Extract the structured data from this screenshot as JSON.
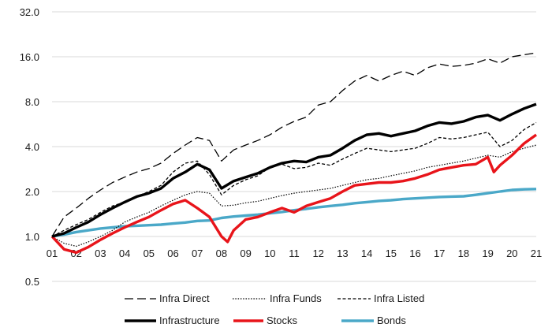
{
  "chart_data": {
    "type": "line",
    "y_scale": "log2",
    "ylim": [
      0.5,
      32
    ],
    "y_ticks": [
      "0.5",
      "1.0",
      "2.0",
      "4.0",
      "8.0",
      "16.0",
      "32.0"
    ],
    "y_tick_values": [
      0.5,
      1,
      2,
      4,
      8,
      16,
      32
    ],
    "grid": "horizontal",
    "legend_position": "bottom",
    "x_ticks": [
      "01",
      "02",
      "03",
      "04",
      "05",
      "06",
      "07",
      "08",
      "09",
      "10",
      "11",
      "12",
      "13",
      "14",
      "15",
      "16",
      "17",
      "18",
      "19",
      "20",
      "21"
    ],
    "x_tick_values": [
      1,
      2,
      3,
      4,
      5,
      6,
      7,
      8,
      9,
      10,
      11,
      12,
      13,
      14,
      15,
      16,
      17,
      18,
      19,
      20,
      21
    ],
    "xlim": [
      1,
      21
    ],
    "series": [
      {
        "name": "Infra Direct",
        "color": "#000000",
        "style": "long-dash",
        "x": [
          1,
          1.5,
          2,
          2.5,
          3,
          3.5,
          4,
          4.5,
          5,
          5.5,
          6,
          6.5,
          7,
          7.5,
          8,
          8.5,
          9,
          9.5,
          10,
          10.5,
          11,
          11.5,
          12,
          12.5,
          13,
          13.5,
          14,
          14.5,
          15,
          15.5,
          16,
          16.5,
          17,
          17.5,
          18,
          18.5,
          19,
          19.5,
          20,
          20.5,
          21
        ],
        "values": [
          1.0,
          1.35,
          1.55,
          1.8,
          2.05,
          2.3,
          2.5,
          2.7,
          2.85,
          3.1,
          3.6,
          4.1,
          4.6,
          4.4,
          3.2,
          3.8,
          4.1,
          4.4,
          4.8,
          5.4,
          5.9,
          6.3,
          7.6,
          8.0,
          9.5,
          11.0,
          12.0,
          11.0,
          12.0,
          12.8,
          12.0,
          13.5,
          14.3,
          13.8,
          14.0,
          14.5,
          15.5,
          14.5,
          16.0,
          16.5,
          17.0
        ]
      },
      {
        "name": "Infra Funds",
        "color": "#000000",
        "style": "dotted",
        "x": [
          1,
          1.5,
          2,
          2.5,
          3,
          3.5,
          4,
          4.5,
          5,
          5.5,
          6,
          6.5,
          7,
          7.5,
          8,
          8.5,
          9,
          9.5,
          10,
          10.5,
          11,
          11.5,
          12,
          12.5,
          13,
          13.5,
          14,
          14.5,
          15,
          15.5,
          16,
          16.5,
          17,
          17.5,
          18,
          18.5,
          19,
          19.5,
          20,
          20.5,
          21
        ],
        "values": [
          1.0,
          0.9,
          0.86,
          0.92,
          1.0,
          1.1,
          1.25,
          1.35,
          1.45,
          1.6,
          1.75,
          1.9,
          2.0,
          1.95,
          1.6,
          1.62,
          1.68,
          1.72,
          1.8,
          1.88,
          1.95,
          2.0,
          2.05,
          2.1,
          2.2,
          2.3,
          2.4,
          2.45,
          2.55,
          2.65,
          2.75,
          2.9,
          3.0,
          3.1,
          3.2,
          3.35,
          3.5,
          3.4,
          3.7,
          3.9,
          4.1
        ]
      },
      {
        "name": "Infra Listed",
        "color": "#000000",
        "style": "short-dash",
        "x": [
          1,
          1.5,
          2,
          2.5,
          3,
          3.5,
          4,
          4.5,
          5,
          5.5,
          6,
          6.5,
          7,
          7.5,
          8,
          8.5,
          9,
          9.5,
          10,
          10.5,
          11,
          11.5,
          12,
          12.5,
          13,
          13.5,
          14,
          14.5,
          15,
          15.5,
          16,
          16.5,
          17,
          17.5,
          18,
          18.5,
          19,
          19.5,
          20,
          20.5,
          21
        ],
        "values": [
          1.0,
          1.1,
          1.2,
          1.3,
          1.45,
          1.6,
          1.7,
          1.85,
          2.0,
          2.2,
          2.7,
          3.1,
          3.2,
          2.6,
          1.9,
          2.2,
          2.4,
          2.55,
          2.9,
          3.05,
          2.85,
          2.9,
          3.1,
          3.0,
          3.3,
          3.6,
          3.9,
          3.8,
          3.7,
          3.8,
          3.9,
          4.2,
          4.6,
          4.5,
          4.6,
          4.8,
          5.0,
          4.0,
          4.4,
          5.2,
          5.8
        ]
      },
      {
        "name": "Infrastructure",
        "color": "#000000",
        "style": "solid-thick",
        "x": [
          1,
          1.5,
          2,
          2.5,
          3,
          3.5,
          4,
          4.5,
          5,
          5.5,
          6,
          6.5,
          7,
          7.5,
          8,
          8.5,
          9,
          9.5,
          10,
          10.5,
          11,
          11.5,
          12,
          12.5,
          13,
          13.5,
          14,
          14.5,
          15,
          15.5,
          16,
          16.5,
          17,
          17.5,
          18,
          18.5,
          19,
          19.5,
          20,
          20.5,
          21
        ],
        "values": [
          1.0,
          1.05,
          1.15,
          1.25,
          1.4,
          1.55,
          1.7,
          1.85,
          1.95,
          2.1,
          2.45,
          2.7,
          3.05,
          2.8,
          2.1,
          2.35,
          2.5,
          2.65,
          2.9,
          3.1,
          3.2,
          3.15,
          3.4,
          3.5,
          3.9,
          4.4,
          4.8,
          4.9,
          4.7,
          4.9,
          5.1,
          5.5,
          5.8,
          5.7,
          5.9,
          6.3,
          6.5,
          6.0,
          6.6,
          7.2,
          7.7
        ]
      },
      {
        "name": "Stocks",
        "color": "#e8141a",
        "style": "solid-thick",
        "x": [
          1,
          1.5,
          2,
          2.5,
          3,
          3.5,
          4,
          4.5,
          5,
          5.5,
          6,
          6.5,
          7,
          7.5,
          8,
          8.25,
          8.5,
          9,
          9.5,
          10,
          10.5,
          11,
          11.5,
          12,
          12.5,
          13,
          13.5,
          14,
          14.5,
          15,
          15.5,
          16,
          16.5,
          17,
          17.5,
          18,
          18.5,
          19,
          19.25,
          19.5,
          20,
          20.5,
          21
        ],
        "values": [
          1.0,
          0.82,
          0.78,
          0.85,
          0.95,
          1.05,
          1.15,
          1.25,
          1.35,
          1.5,
          1.65,
          1.75,
          1.55,
          1.35,
          1.0,
          0.92,
          1.1,
          1.3,
          1.35,
          1.45,
          1.55,
          1.45,
          1.6,
          1.7,
          1.8,
          2.0,
          2.2,
          2.25,
          2.3,
          2.3,
          2.35,
          2.45,
          2.6,
          2.8,
          2.9,
          3.0,
          3.05,
          3.4,
          2.7,
          3.0,
          3.5,
          4.2,
          4.8
        ]
      },
      {
        "name": "Bonds",
        "color": "#4aa8c8",
        "style": "solid-thick",
        "x": [
          1,
          1.5,
          2,
          2.5,
          3,
          3.5,
          4,
          4.5,
          5,
          5.5,
          6,
          6.5,
          7,
          7.5,
          8,
          8.5,
          9,
          9.5,
          10,
          10.5,
          11,
          11.5,
          12,
          12.5,
          13,
          13.5,
          14,
          14.5,
          15,
          15.5,
          16,
          16.5,
          17,
          17.5,
          18,
          18.5,
          19,
          19.5,
          20,
          20.5,
          21
        ],
        "values": [
          1.0,
          1.03,
          1.07,
          1.1,
          1.13,
          1.15,
          1.17,
          1.18,
          1.19,
          1.2,
          1.22,
          1.24,
          1.27,
          1.28,
          1.33,
          1.36,
          1.38,
          1.4,
          1.43,
          1.46,
          1.5,
          1.53,
          1.57,
          1.6,
          1.63,
          1.67,
          1.7,
          1.73,
          1.75,
          1.78,
          1.8,
          1.82,
          1.84,
          1.85,
          1.86,
          1.9,
          1.95,
          2.0,
          2.05,
          2.07,
          2.08
        ]
      }
    ],
    "legend": [
      [
        "Infra Direct",
        "Infra Funds",
        "Infra Listed"
      ],
      [
        "Infrastructure",
        "Stocks",
        "Bonds"
      ]
    ]
  }
}
